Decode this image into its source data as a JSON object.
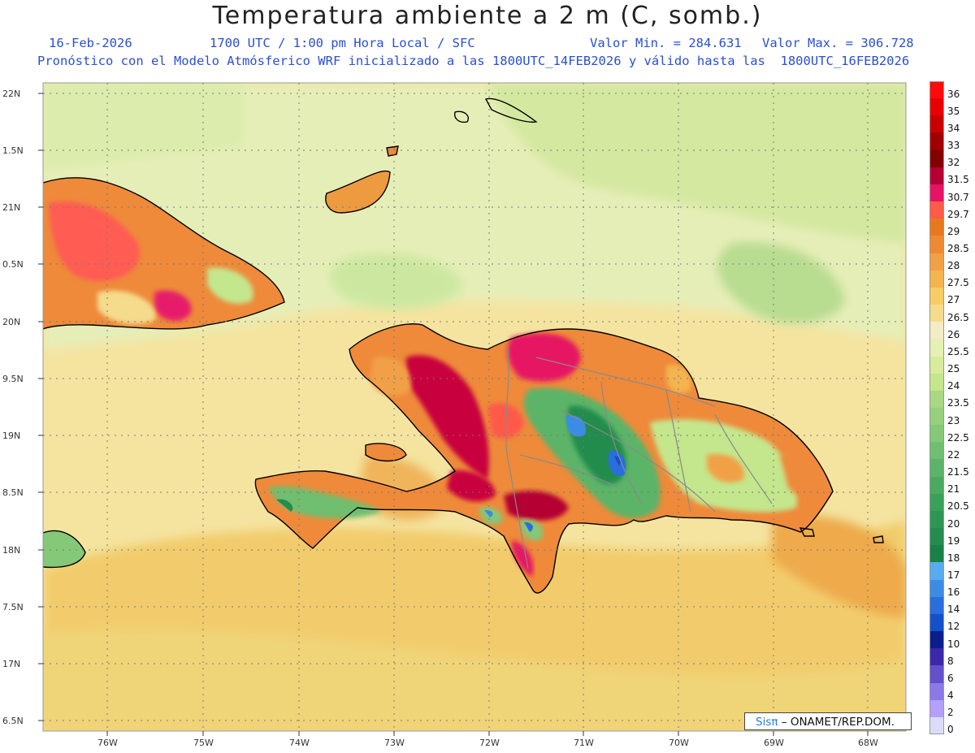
{
  "header": {
    "title": "Temperatura ambiente a 2 m (C, somb.)",
    "date": "16-Feb-2026",
    "time_info": "1700 UTC / 1:00 pm Hora Local / SFC",
    "value_min_label": "Valor Min. = 284.631",
    "value_max_label": "Valor Max. = 306.728",
    "model_info": "Pronóstico con el Modelo Atmósferico WRF inicializado a las 1800UTC_14FEB2026 y válido hasta las  1800UTC_16FEB2026"
  },
  "axes": {
    "lat_labels": [
      "22N",
      "1.5N",
      "21N",
      "0.5N",
      "20N",
      "9.5N",
      "19N",
      "8.5N",
      "18N",
      "7.5N",
      "17N",
      "6.5N"
    ],
    "lon_labels": [
      "76W",
      "75W",
      "74W",
      "73W",
      "72W",
      "71W",
      "70W",
      "69W",
      "68W"
    ]
  },
  "colorbar": {
    "levels": [
      {
        "label": "36",
        "color": "#ff0a0a"
      },
      {
        "label": "35",
        "color": "#e60000"
      },
      {
        "label": "34",
        "color": "#c80000"
      },
      {
        "label": "33",
        "color": "#a00000"
      },
      {
        "label": "32",
        "color": "#820000"
      },
      {
        "label": "31.5",
        "color": "#b40032"
      },
      {
        "label": "30.7",
        "color": "#e61464"
      },
      {
        "label": "29.7",
        "color": "#ff5a4a"
      },
      {
        "label": "29",
        "color": "#e8781e"
      },
      {
        "label": "28.5",
        "color": "#f08a32"
      },
      {
        "label": "28",
        "color": "#f2a046"
      },
      {
        "label": "27.5",
        "color": "#f4b450"
      },
      {
        "label": "27",
        "color": "#f6cc64"
      },
      {
        "label": "26.5",
        "color": "#f4dc8c"
      },
      {
        "label": "26",
        "color": "#f4ecc4"
      },
      {
        "label": "25.5",
        "color": "#e6f0b4"
      },
      {
        "label": "25",
        "color": "#d8ec9c"
      },
      {
        "label": "24",
        "color": "#c4e68c"
      },
      {
        "label": "23.5",
        "color": "#a8d884"
      },
      {
        "label": "23",
        "color": "#96d07c"
      },
      {
        "label": "22.5",
        "color": "#84c878"
      },
      {
        "label": "22",
        "color": "#70be70"
      },
      {
        "label": "21.5",
        "color": "#5cb468"
      },
      {
        "label": "21",
        "color": "#4aaa60"
      },
      {
        "label": "20.5",
        "color": "#3aa05a"
      },
      {
        "label": "20",
        "color": "#2e9654"
      },
      {
        "label": "19",
        "color": "#248c4e"
      },
      {
        "label": "18",
        "color": "#1a8046"
      },
      {
        "label": "17",
        "color": "#5aaaf0"
      },
      {
        "label": "16",
        "color": "#3c8ce6"
      },
      {
        "label": "14",
        "color": "#2a6edc"
      },
      {
        "label": "12",
        "color": "#1450c8"
      },
      {
        "label": "10",
        "color": "#0a1e8c"
      },
      {
        "label": "8",
        "color": "#3c28aa"
      },
      {
        "label": "6",
        "color": "#6450c8"
      },
      {
        "label": "4",
        "color": "#8c78e6"
      },
      {
        "label": "2",
        "color": "#b4a0f8"
      },
      {
        "label": "0",
        "color": "#dcdcfa"
      }
    ]
  },
  "credit": {
    "logo": "Sisπ",
    "text": "– ONAMET/REP.DOM."
  }
}
